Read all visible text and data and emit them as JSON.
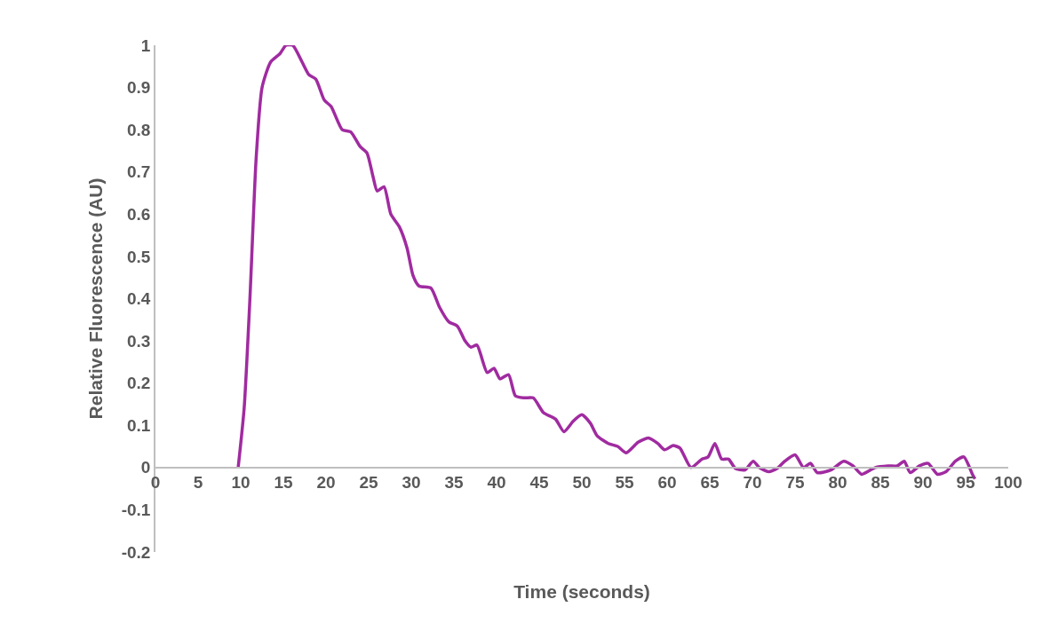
{
  "chart_data": {
    "type": "line",
    "xlabel": "Time (seconds)",
    "ylabel": "Relative Fluorescence (AU)",
    "xlim": [
      0,
      100
    ],
    "xticks": [
      0,
      5,
      10,
      15,
      20,
      25,
      30,
      35,
      40,
      45,
      50,
      55,
      60,
      65,
      70,
      75,
      80,
      85,
      90,
      95,
      100
    ],
    "ylim": [
      -0.2,
      1
    ],
    "yticks": [
      -0.2,
      -0.1,
      0,
      0.1,
      0.2,
      0.3,
      0.4,
      0.5,
      0.6,
      0.7,
      0.8,
      0.9,
      1
    ],
    "grid": false,
    "marker": "none",
    "line_style": "solid",
    "series": [
      {
        "color": "#a02ba0",
        "x": [
          9.7,
          10.4,
          11.1,
          11.8,
          12.5,
          13.5,
          14.6,
          15.3,
          16.1,
          17.2,
          18.0,
          18.8,
          19.8,
          20.6,
          21.9,
          22.9,
          24.0,
          24.8,
          25.5,
          26.0,
          26.8,
          27.6,
          28.6,
          29.5,
          30.2,
          30.9,
          32.3,
          33.3,
          34.4,
          35.4,
          36.3,
          37.0,
          37.7,
          38.9,
          39.7,
          40.4,
          41.4,
          42.2,
          43.2,
          44.3,
          45.5,
          46.9,
          47.9,
          49.0,
          50.0,
          51.0,
          51.8,
          53.1,
          54.2,
          55.2,
          56.6,
          57.8,
          58.9,
          59.7,
          60.7,
          61.5,
          62.8,
          64.1,
          64.8,
          65.6,
          66.4,
          67.2,
          68.0,
          69.1,
          70.1,
          70.8,
          71.9,
          72.9,
          73.8,
          75.0,
          76.0,
          76.8,
          77.6,
          79.2,
          80.7,
          81.8,
          82.8,
          84.4,
          85.9,
          87.0,
          87.8,
          88.5,
          89.6,
          90.6,
          91.7,
          92.7,
          93.8,
          94.8,
          95.8,
          96.1
        ],
        "values": [
          0,
          0.14,
          0.41,
          0.73,
          0.9,
          0.96,
          0.98,
          1.0,
          1.0,
          0.96,
          0.93,
          0.92,
          0.87,
          0.855,
          0.8,
          0.795,
          0.76,
          0.745,
          0.69,
          0.655,
          0.665,
          0.6,
          0.57,
          0.52,
          0.455,
          0.43,
          0.425,
          0.38,
          0.345,
          0.335,
          0.3,
          0.285,
          0.29,
          0.225,
          0.235,
          0.21,
          0.22,
          0.17,
          0.165,
          0.165,
          0.13,
          0.115,
          0.085,
          0.11,
          0.125,
          0.105,
          0.075,
          0.057,
          0.05,
          0.035,
          0.06,
          0.07,
          0.057,
          0.042,
          0.052,
          0.046,
          0.0,
          0.02,
          0.025,
          0.057,
          0.02,
          0.02,
          -0.002,
          -0.006,
          0.015,
          0.0,
          -0.01,
          -0.002,
          0.015,
          0.03,
          0.0,
          0.01,
          -0.012,
          -0.006,
          0.015,
          0.004,
          -0.016,
          0.0,
          0.004,
          0.004,
          0.015,
          -0.012,
          0.004,
          0.01,
          -0.016,
          -0.01,
          0.015,
          0.025,
          -0.016,
          -0.027
        ]
      }
    ]
  }
}
